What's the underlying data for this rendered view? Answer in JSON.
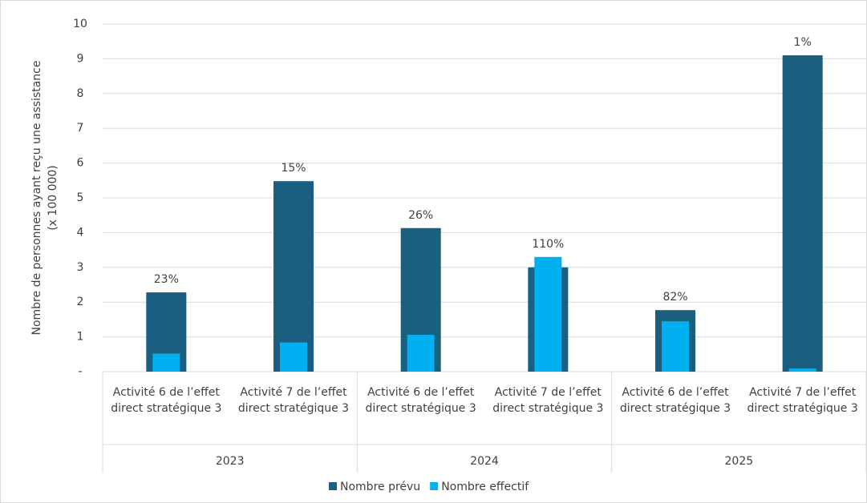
{
  "chart_data": {
    "type": "bar",
    "ylabel": [
      "Nombre de personnes ayant reçu une assistance",
      "(x 100 000)"
    ],
    "categories": [
      "Activité 6 de l’effet direct stratégique 3",
      "Activité 7 de l’effet direct stratégique 3",
      "Activité 6 de l’effet direct stratégique 3",
      "Activité 7 de l’effet direct stratégique 3",
      "Activité 6 de l’effet direct stratégique 3",
      "Activité 7 de l’effet direct stratégique 3"
    ],
    "groups": [
      "2023",
      "2024",
      "2025"
    ],
    "series": [
      {
        "name": "Nombre prévu",
        "color": "#1a5f80",
        "values": [
          2.28,
          5.48,
          4.13,
          3.0,
          1.77,
          9.1
        ]
      },
      {
        "name": "Nombre effectif",
        "color": "#00b0f0",
        "values": [
          0.52,
          0.84,
          1.06,
          3.3,
          1.45,
          0.09
        ]
      }
    ],
    "ratio": {
      "values": [
        23,
        15,
        26,
        110,
        82,
        1
      ],
      "value_labels": [
        "23%",
        "15%",
        "26%",
        "110%",
        "82%",
        "1%"
      ]
    },
    "ylim": [
      0,
      10
    ],
    "yticks": [
      {
        "value": 0,
        "label": "-"
      },
      1,
      2,
      3,
      4,
      5,
      6,
      7,
      8,
      9,
      10
    ],
    "grid": true,
    "legend": "bottom"
  }
}
